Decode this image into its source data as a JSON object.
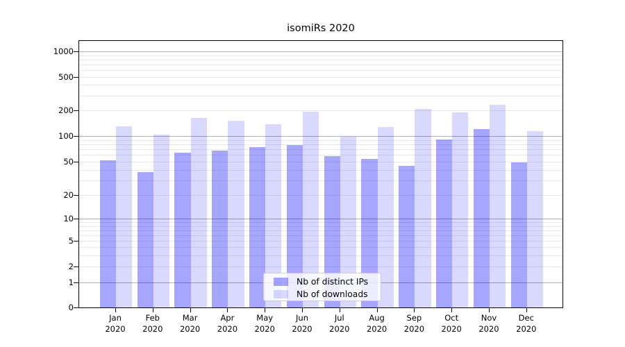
{
  "chart_data": {
    "type": "bar",
    "title": "isomiRs 2020",
    "categories": [
      "Jan",
      "Feb",
      "Mar",
      "Apr",
      "May",
      "Jun",
      "Jul",
      "Aug",
      "Sep",
      "Oct",
      "Nov",
      "Dec"
    ],
    "category_year": "2020",
    "series": [
      {
        "name": "Nb of distinct IPs",
        "color": "rgba(0,0,255,0.35)",
        "values": [
          52,
          38,
          64,
          68,
          75,
          78,
          58,
          54,
          45,
          91,
          121,
          49
        ]
      },
      {
        "name": "Nb of downloads",
        "color": "rgba(0,0,255,0.15)",
        "values": [
          130,
          104,
          163,
          150,
          138,
          193,
          99,
          128,
          208,
          190,
          235,
          115
        ]
      }
    ],
    "yscale": "symlog",
    "ylim": [
      0,
      1000
    ],
    "y_ticks": [
      0,
      1,
      2,
      5,
      10,
      20,
      50,
      100,
      200,
      500,
      1000
    ],
    "grid": "horizontal major and log-minor gridlines",
    "legend_position": "lower center"
  },
  "colors": {
    "major_grid": "#b0b0b0",
    "minor_grid": "#e9e9e9",
    "axis": "#000000",
    "text": "#000000",
    "legend_border": "#cccccc",
    "bar_dark": "rgba(0,0,255,0.35)",
    "bar_light": "rgba(0,0,255,0.15)"
  }
}
